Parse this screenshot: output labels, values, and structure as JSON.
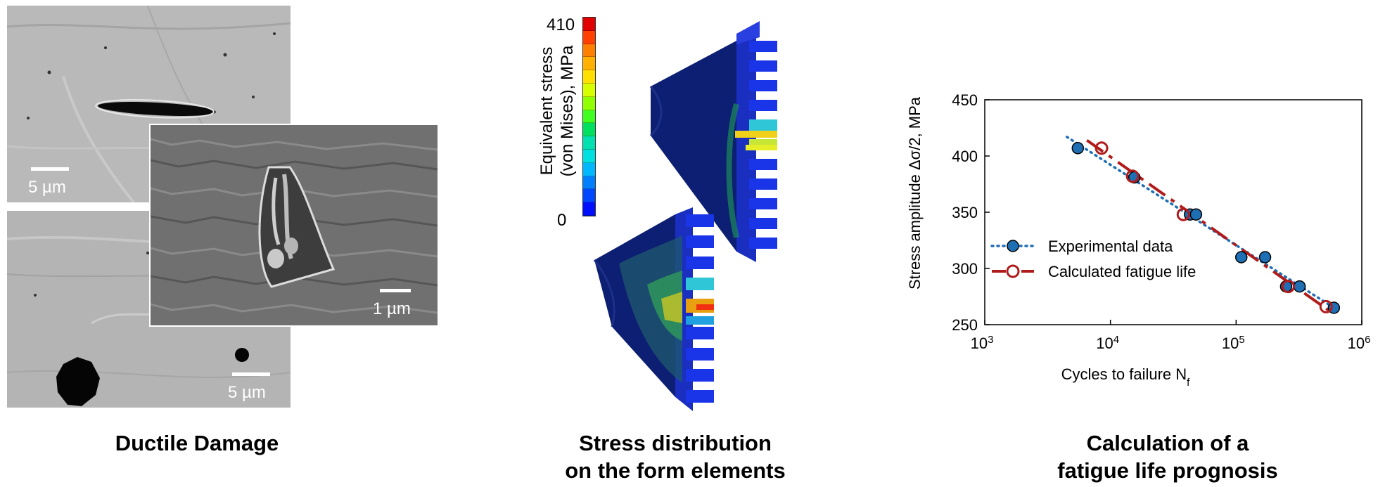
{
  "panels": {
    "ductile": {
      "caption": "Ductile Damage",
      "scale_top_left": "5 µm",
      "scale_inset": "1 µm",
      "scale_bottom_left": "5 µm"
    },
    "stress": {
      "caption_line1": "Stress distribution",
      "caption_line2": "on the form elements",
      "colorbar": {
        "title_line1": "Equivalent stress",
        "title_line2": "(von Mises), MPa",
        "max_label": "410",
        "min_label": "0",
        "colors": [
          "#e00000",
          "#ff4000",
          "#ff8000",
          "#ffb000",
          "#ffe000",
          "#d8ff00",
          "#90ff00",
          "#40ff20",
          "#00e060",
          "#00e0b0",
          "#00e0e0",
          "#00b8ff",
          "#0080ff",
          "#0048ff",
          "#0010ff"
        ]
      }
    },
    "fatigue": {
      "caption_line1": "Calculation of a",
      "caption_line2": "fatigue life prognosis"
    }
  },
  "chart_data": {
    "type": "scatter",
    "xlabel_main": "Cycles to failure N",
    "xlabel_sub": "f",
    "ylabel": "Stress amplitude Δσ/2, MPa",
    "xscale": "log",
    "xlim": [
      1000,
      1000000
    ],
    "ylim": [
      250,
      450
    ],
    "x_ticks": [
      {
        "base": "10",
        "exp": "3",
        "value": 1000
      },
      {
        "base": "10",
        "exp": "4",
        "value": 10000
      },
      {
        "base": "10",
        "exp": "5",
        "value": 100000
      },
      {
        "base": "10",
        "exp": "6",
        "value": 1000000
      }
    ],
    "y_ticks": [
      "250",
      "300",
      "350",
      "400",
      "450"
    ],
    "legend_placement": "bottom-left",
    "series": [
      {
        "name": "Experimental data",
        "style": "dotted-line-filled-circles",
        "color": "#1f6fb5",
        "points": [
          {
            "x": 5500,
            "y": 407
          },
          {
            "x": 15500,
            "y": 381
          },
          {
            "x": 43000,
            "y": 348
          },
          {
            "x": 48000,
            "y": 348
          },
          {
            "x": 110000,
            "y": 310
          },
          {
            "x": 170000,
            "y": 310
          },
          {
            "x": 250000,
            "y": 284
          },
          {
            "x": 320000,
            "y": 284
          },
          {
            "x": 600000,
            "y": 265
          }
        ],
        "trend": [
          {
            "x": 4500,
            "y": 417
          },
          {
            "x": 600000,
            "y": 265
          }
        ]
      },
      {
        "name": "Calculated fatigue life",
        "style": "dashed-line-open-circles",
        "color": "#b01c1c",
        "points": [
          {
            "x": 8500,
            "y": 407
          },
          {
            "x": 15000,
            "y": 382
          },
          {
            "x": 38000,
            "y": 348
          },
          {
            "x": 260000,
            "y": 284
          },
          {
            "x": 520000,
            "y": 266
          }
        ],
        "trend": [
          {
            "x": 6500,
            "y": 414
          },
          {
            "x": 540000,
            "y": 263
          }
        ]
      }
    ]
  }
}
